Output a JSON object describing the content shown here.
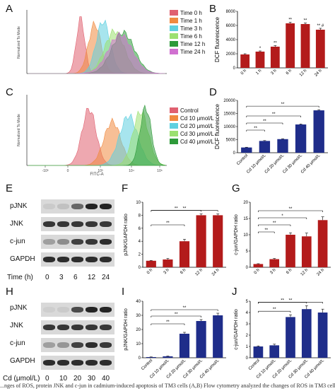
{
  "panels": {
    "A": "A",
    "B": "B",
    "C": "C",
    "D": "D",
    "E": "E",
    "F": "F",
    "G": "G",
    "H": "H",
    "I": "I",
    "J": "J"
  },
  "panelA": {
    "ylabel": "Normalized To Mode",
    "legend": [
      "Time 0 h",
      "Time 1 h",
      "Time 3 h",
      "Time 6 h",
      "Time 12 h",
      "Time 24 h"
    ],
    "colors": [
      "#e06070",
      "#f08a40",
      "#5fd0e0",
      "#9be070",
      "#2e9a3a",
      "#d070d0"
    ]
  },
  "panelC": {
    "ylabel": "Normalized To Mode",
    "xlabel": "FITC-A",
    "ticks": [
      "-10³",
      "0",
      "10³",
      "10⁴",
      "10⁵"
    ],
    "legend": [
      "Control",
      "Cd 10 μmol/L",
      "Cd 20 μmol/L",
      "Cd 30 μmol/L",
      "Cd 40 μmol/L"
    ],
    "colors": [
      "#e06070",
      "#f08a40",
      "#5fd0e0",
      "#9be070",
      "#2e9a3a"
    ]
  },
  "blotE": {
    "rows": [
      "pJNK",
      "JNK",
      "c-jun",
      "GAPDH"
    ],
    "xlabel": "Time (h)",
    "lanes": [
      "0",
      "3",
      "6",
      "12",
      "24"
    ]
  },
  "blotH": {
    "rows": [
      "pJNK",
      "JNK",
      "c-jun",
      "GAPDH"
    ],
    "xlabel": "Cd (μmol/L)",
    "lanes": [
      "0",
      "10",
      "20",
      "30",
      "40"
    ]
  },
  "chart_data": [
    {
      "id": "B",
      "type": "bar",
      "color": "#b31b1b",
      "categories": [
        "0 h",
        "1 h",
        "3 h",
        "6 h",
        "12 h",
        "24 h"
      ],
      "values": [
        1900,
        2300,
        3000,
        6300,
        6200,
        5400
      ],
      "errors": [
        100,
        100,
        150,
        150,
        150,
        200
      ],
      "sig": [
        "",
        "*",
        "**",
        "**",
        "**",
        "** #"
      ],
      "ylabel": "DCF fluorescence",
      "ylim": [
        0,
        8000
      ],
      "yticks": [
        "0",
        "2000",
        "4000",
        "6000",
        "8000"
      ]
    },
    {
      "id": "D",
      "type": "bar",
      "color": "#1f2d8a",
      "categories": [
        "Control",
        "Cd 10 μmol/L",
        "Cd 20 μmol/L",
        "Cd 30 μmol/L",
        "Cd 40 μmol/L"
      ],
      "values": [
        2000,
        4500,
        5200,
        10800,
        16200
      ],
      "errors": [
        100,
        150,
        150,
        200,
        250
      ],
      "ylabel": "DCF fluorescence",
      "ylim": [
        0,
        20000
      ],
      "yticks": [
        "0",
        "5000",
        "10000",
        "15000",
        "20000"
      ],
      "brackets": [
        "**",
        "**",
        "**",
        "**"
      ]
    },
    {
      "id": "F",
      "type": "bar",
      "color": "#b31b1b",
      "categories": [
        "0 h",
        "3 h",
        "6 h",
        "12 h",
        "24 h"
      ],
      "values": [
        1.0,
        1.2,
        4.0,
        8.0,
        8.0
      ],
      "errors": [
        0.05,
        0.15,
        0.3,
        0.2,
        0.2
      ],
      "ylabel": "pJNK/GAPDH ratio",
      "ylim": [
        0,
        10
      ],
      "yticks": [
        "0",
        "2",
        "4",
        "6",
        "8",
        "10"
      ],
      "brackets": [
        "**",
        "**",
        "**"
      ]
    },
    {
      "id": "G",
      "type": "bar",
      "color": "#b31b1b",
      "categories": [
        "0 h",
        "3 h",
        "6 h",
        "12 h",
        "24 h"
      ],
      "values": [
        1.0,
        2.5,
        10.0,
        9.5,
        14.5
      ],
      "errors": [
        0.1,
        0.2,
        0.6,
        1.0,
        1.0
      ],
      "ylabel": "c-jun/GAPDH ratio",
      "ylim": [
        0,
        20
      ],
      "yticks": [
        "0",
        "5",
        "10",
        "15",
        "20"
      ],
      "brackets": [
        "**",
        "**",
        "*",
        "**"
      ]
    },
    {
      "id": "I",
      "type": "bar",
      "color": "#1f2d8a",
      "categories": [
        "Control",
        "Cd 10 μmol/L",
        "Cd 20 μmol/L",
        "Cd 30 μmol/L",
        "Cd 40 μmol/L"
      ],
      "values": [
        0.5,
        1.0,
        17.0,
        26.0,
        30.0
      ],
      "errors": [
        0.1,
        0.2,
        1.0,
        1.0,
        1.5
      ],
      "ylabel": "pJNK/GAPDH ratio",
      "ylim": [
        0,
        40
      ],
      "yticks": [
        "0",
        "10",
        "20",
        "30",
        "40"
      ],
      "brackets": [
        "**",
        "**",
        "**"
      ]
    },
    {
      "id": "J",
      "type": "bar",
      "color": "#1f2d8a",
      "categories": [
        "Control",
        "Cd 10 μmol/L",
        "Cd 20 μmol/L",
        "Cd 30 μmol/L",
        "Cd 40 μmol/L"
      ],
      "values": [
        1.0,
        1.1,
        3.6,
        4.3,
        4.0
      ],
      "errors": [
        0.05,
        0.1,
        0.2,
        0.3,
        0.3
      ],
      "ylabel": "c-jun/GAPDH ratio",
      "ylim": [
        0,
        5
      ],
      "yticks": [
        "0",
        "1",
        "2",
        "3",
        "4",
        "5"
      ],
      "brackets": [
        "**",
        "**",
        "**"
      ]
    }
  ],
  "caption": "...nges of ROS, protein JNK and c-jun in cadmium-induced apoptosis of TM3 cells (A,B) Flow cytometry analyzed the changes of ROS in TM3 cells t..."
}
